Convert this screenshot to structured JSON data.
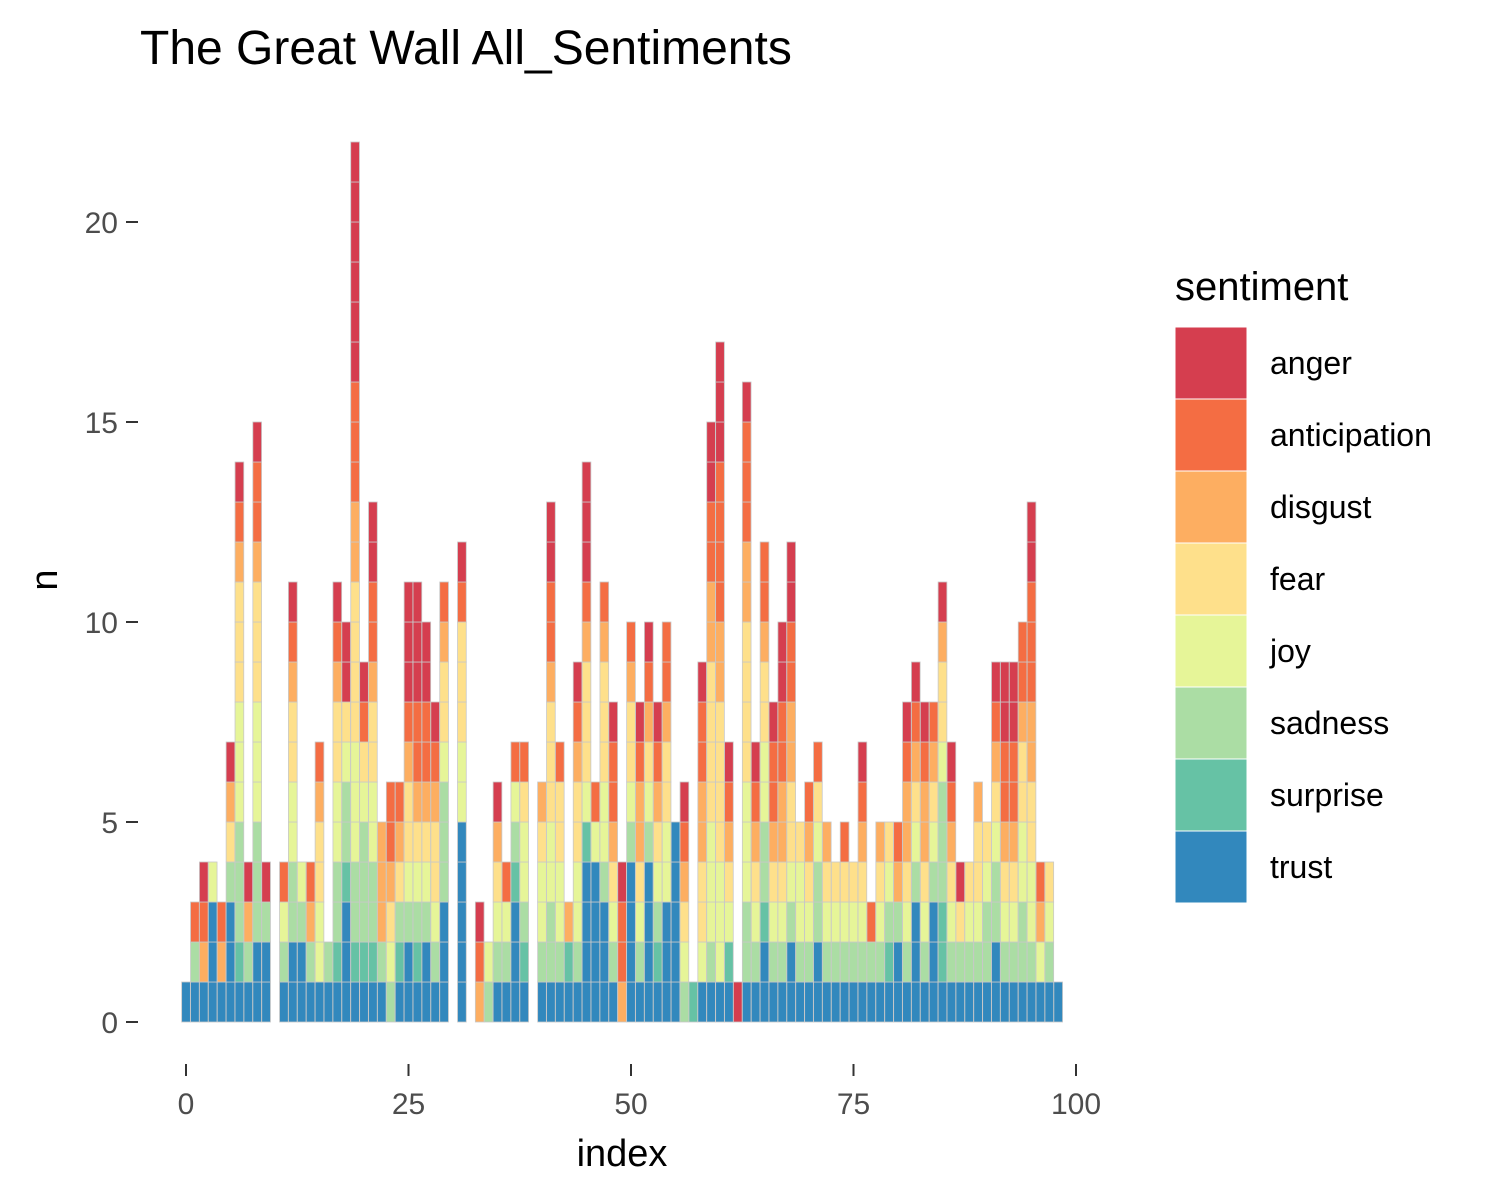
{
  "chart_data": {
    "type": "bar",
    "stacked": true,
    "title": "The Great Wall All_Sentiments",
    "xlabel": "index",
    "ylabel": "n",
    "xlim": [
      -1,
      100
    ],
    "ylim": [
      0,
      22
    ],
    "x_ticks": [
      0,
      25,
      50,
      75,
      100
    ],
    "y_ticks": [
      0,
      5,
      10,
      15,
      20
    ],
    "grid": false,
    "legend": {
      "title": "sentiment",
      "position": "right",
      "entries": [
        {
          "name": "anger",
          "color": "#D53E4F"
        },
        {
          "name": "anticipation",
          "color": "#F46D43"
        },
        {
          "name": "disgust",
          "color": "#FDAE61"
        },
        {
          "name": "fear",
          "color": "#FEE08B"
        },
        {
          "name": "joy",
          "color": "#E6F598"
        },
        {
          "name": "sadness",
          "color": "#ABDDA4"
        },
        {
          "name": "surprise",
          "color": "#66C2A5"
        },
        {
          "name": "trust",
          "color": "#3288BD"
        }
      ]
    },
    "x": [
      0,
      1,
      2,
      3,
      4,
      5,
      6,
      7,
      8,
      9,
      11,
      12,
      13,
      14,
      15,
      16,
      17,
      18,
      19,
      20,
      21,
      22,
      23,
      24,
      25,
      26,
      27,
      28,
      29,
      31,
      33,
      34,
      35,
      36,
      37,
      38,
      40,
      41,
      42,
      43,
      44,
      45,
      46,
      47,
      48,
      49,
      50,
      51,
      52,
      53,
      54,
      55,
      56,
      57,
      58,
      59,
      60,
      61,
      62,
      63,
      64,
      65,
      66,
      67,
      68,
      69,
      70,
      71,
      72,
      73,
      74,
      75,
      76,
      77,
      78,
      79,
      80,
      81,
      82,
      83,
      84,
      85,
      86,
      87,
      88,
      89,
      90,
      91,
      92,
      93,
      94,
      95,
      96,
      97,
      98
    ],
    "totals": [
      1,
      3,
      4,
      4,
      3,
      7,
      14,
      4,
      15,
      4,
      3,
      11,
      4,
      3,
      7,
      2,
      11,
      9,
      22,
      9,
      13,
      5,
      5,
      6,
      12,
      10,
      10,
      8,
      11,
      12,
      3,
      2,
      6,
      4,
      7,
      7,
      6,
      13,
      8,
      3,
      9,
      14,
      6,
      11,
      8,
      4,
      11,
      8,
      10,
      8,
      10,
      5,
      6,
      1,
      9,
      15,
      17,
      7,
      1,
      16,
      7,
      12,
      8,
      10,
      12,
      5,
      6,
      7,
      4,
      4,
      4,
      4,
      7,
      3,
      5,
      4,
      4,
      8,
      8,
      8,
      7,
      11,
      7,
      4,
      3,
      5,
      5,
      9,
      9,
      9,
      10,
      13,
      4,
      3,
      1
    ],
    "series": [
      {
        "name": "trust",
        "values": [
          1,
          1,
          1,
          3,
          1,
          3,
          1,
          1,
          2,
          2,
          1,
          2,
          2,
          1,
          1,
          1,
          1,
          3,
          1,
          1,
          1,
          1,
          0,
          1,
          2,
          1,
          2,
          1,
          3,
          5,
          0,
          0,
          1,
          1,
          3,
          1,
          1,
          1,
          1,
          1,
          1,
          4,
          4,
          3,
          1,
          0,
          4,
          1,
          4,
          1,
          3,
          5,
          0,
          0,
          1,
          1,
          1,
          1,
          0,
          1,
          1,
          2,
          1,
          1,
          2,
          1,
          1,
          2,
          1,
          1,
          1,
          1,
          1,
          1,
          1,
          1,
          2,
          1,
          3,
          1,
          3,
          1,
          1,
          1,
          1,
          1,
          1,
          2,
          1,
          1,
          1,
          1,
          1,
          1,
          1
        ]
      },
      {
        "name": "surprise",
        "values": [
          0,
          0,
          0,
          0,
          0,
          0,
          1,
          0,
          0,
          0,
          0,
          0,
          0,
          0,
          0,
          0,
          1,
          1,
          1,
          1,
          1,
          0,
          0,
          1,
          0,
          1,
          0,
          0,
          0,
          0,
          0,
          0,
          0,
          0,
          1,
          1,
          0,
          0,
          0,
          1,
          0,
          1,
          0,
          0,
          0,
          0,
          0,
          0,
          0,
          1,
          0,
          0,
          0,
          1,
          0,
          0,
          0,
          1,
          0,
          0,
          0,
          1,
          0,
          0,
          0,
          0,
          0,
          0,
          0,
          0,
          0,
          0,
          0,
          0,
          0,
          1,
          0,
          0,
          0,
          0,
          0,
          2,
          0,
          0,
          0,
          0,
          0,
          0,
          0,
          0,
          0,
          0,
          0,
          0,
          0
        ]
      },
      {
        "name": "sadness",
        "values": [
          0,
          1,
          0,
          0,
          0,
          1,
          3,
          1,
          3,
          1,
          1,
          2,
          1,
          1,
          0,
          1,
          2,
          2,
          2,
          3,
          2,
          1,
          1,
          1,
          1,
          1,
          1,
          1,
          3,
          0,
          0,
          1,
          1,
          1,
          1,
          1,
          1,
          2,
          1,
          0,
          1,
          0,
          0,
          1,
          1,
          0,
          1,
          1,
          1,
          1,
          0,
          0,
          1,
          0,
          0,
          1,
          0,
          0,
          0,
          2,
          1,
          2,
          1,
          1,
          1,
          1,
          1,
          2,
          1,
          1,
          1,
          1,
          1,
          1,
          1,
          1,
          1,
          1,
          1,
          1,
          1,
          3,
          1,
          1,
          1,
          1,
          2,
          2,
          1,
          1,
          2,
          1,
          0,
          1,
          0
        ]
      },
      {
        "name": "joy",
        "values": [
          0,
          0,
          0,
          1,
          0,
          0,
          3,
          0,
          3,
          0,
          1,
          2,
          1,
          0,
          2,
          0,
          2,
          1,
          3,
          1,
          2,
          0,
          1,
          0,
          1,
          1,
          1,
          1,
          1,
          2,
          0,
          1,
          1,
          1,
          1,
          2,
          2,
          2,
          2,
          0,
          2,
          1,
          1,
          2,
          1,
          0,
          1,
          1,
          1,
          1,
          2,
          0,
          1,
          0,
          1,
          3,
          3,
          1,
          0,
          3,
          1,
          2,
          1,
          1,
          1,
          2,
          1,
          1,
          1,
          1,
          1,
          1,
          1,
          0,
          1,
          1,
          0,
          1,
          1,
          1,
          1,
          1,
          1,
          0,
          1,
          1,
          1,
          1,
          1,
          1,
          2,
          2,
          1,
          1,
          0
        ]
      },
      {
        "name": "fear",
        "values": [
          0,
          0,
          0,
          0,
          0,
          1,
          3,
          0,
          3,
          0,
          0,
          2,
          0,
          0,
          2,
          0,
          2,
          1,
          4,
          1,
          2,
          0,
          1,
          1,
          2,
          1,
          1,
          2,
          2,
          3,
          0,
          0,
          1,
          0,
          0,
          1,
          1,
          3,
          2,
          0,
          2,
          3,
          0,
          3,
          1,
          0,
          2,
          1,
          1,
          1,
          2,
          0,
          1,
          0,
          2,
          4,
          4,
          1,
          0,
          4,
          1,
          2,
          1,
          1,
          2,
          1,
          1,
          1,
          1,
          1,
          1,
          1,
          1,
          0,
          1,
          1,
          0,
          1,
          1,
          1,
          1,
          2,
          1,
          1,
          1,
          2,
          1,
          1,
          1,
          1,
          2,
          2,
          0,
          1,
          0
        ]
      },
      {
        "name": "disgust",
        "values": [
          0,
          0,
          1,
          0,
          1,
          1,
          1,
          1,
          1,
          0,
          0,
          1,
          0,
          1,
          1,
          0,
          1,
          0,
          2,
          0,
          1,
          3,
          1,
          1,
          1,
          1,
          1,
          1,
          1,
          0,
          1,
          0,
          1,
          0,
          0,
          0,
          1,
          1,
          0,
          1,
          1,
          1,
          0,
          1,
          1,
          1,
          1,
          2,
          1,
          1,
          1,
          0,
          1,
          0,
          2,
          2,
          2,
          1,
          0,
          2,
          1,
          1,
          1,
          2,
          2,
          0,
          1,
          0,
          1,
          0,
          0,
          0,
          1,
          0,
          1,
          0,
          1,
          2,
          1,
          2,
          1,
          1,
          1,
          0,
          0,
          1,
          0,
          1,
          1,
          1,
          1,
          2,
          1,
          0,
          0
        ]
      },
      {
        "name": "anticipation",
        "values": [
          0,
          1,
          1,
          0,
          1,
          0,
          1,
          0,
          2,
          0,
          1,
          1,
          0,
          1,
          1,
          0,
          1,
          0,
          3,
          1,
          2,
          0,
          2,
          1,
          1,
          2,
          2,
          1,
          1,
          1,
          1,
          0,
          0,
          1,
          1,
          1,
          0,
          2,
          1,
          0,
          1,
          1,
          1,
          1,
          2,
          2,
          1,
          1,
          1,
          1,
          2,
          0,
          1,
          0,
          2,
          2,
          4,
          1,
          0,
          3,
          1,
          2,
          2,
          2,
          2,
          0,
          1,
          1,
          0,
          0,
          1,
          0,
          1,
          1,
          0,
          0,
          1,
          1,
          1,
          1,
          1,
          0,
          1,
          0,
          0,
          0,
          0,
          1,
          2,
          2,
          2,
          3,
          1,
          0,
          0
        ]
      },
      {
        "name": "anger",
        "values": [
          0,
          0,
          1,
          0,
          0,
          1,
          1,
          1,
          1,
          1,
          0,
          1,
          0,
          0,
          0,
          0,
          1,
          2,
          6,
          1,
          2,
          0,
          0,
          0,
          3,
          3,
          2,
          1,
          0,
          1,
          1,
          0,
          1,
          0,
          0,
          0,
          0,
          2,
          0,
          0,
          1,
          3,
          0,
          0,
          1,
          1,
          0,
          1,
          1,
          1,
          0,
          0,
          1,
          0,
          1,
          2,
          3,
          1,
          1,
          1,
          1,
          0,
          1,
          2,
          2,
          0,
          0,
          0,
          0,
          0,
          0,
          0,
          1,
          0,
          0,
          0,
          0,
          1,
          1,
          1,
          0,
          1,
          1,
          1,
          0,
          0,
          0,
          1,
          2,
          2,
          0,
          2,
          0,
          0,
          0
        ]
      }
    ]
  }
}
